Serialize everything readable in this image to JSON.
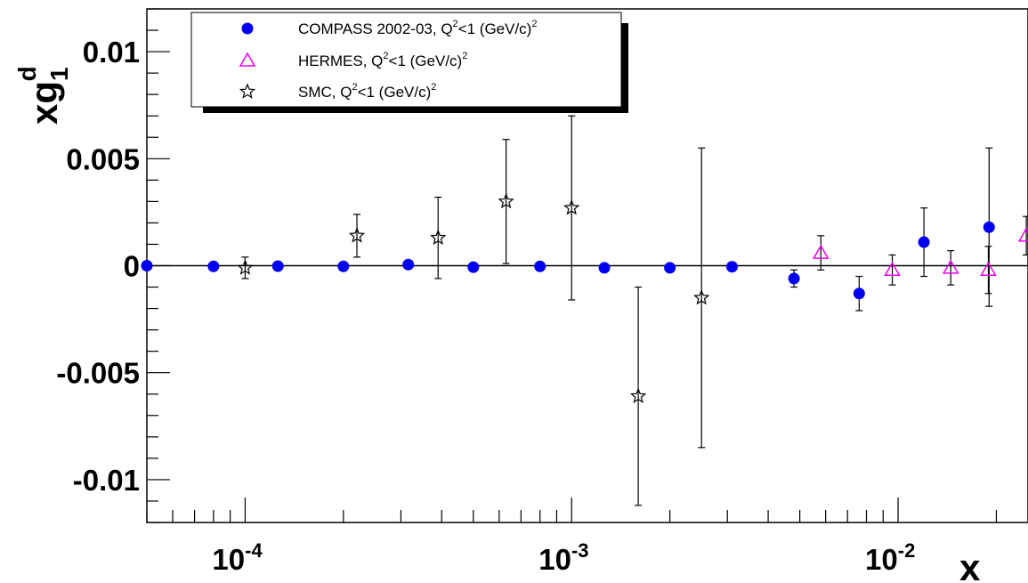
{
  "chart_data": {
    "type": "scatter",
    "x_scale": "log",
    "xlim": [
      5e-05,
      0.025
    ],
    "ylim": [
      -0.012,
      0.012
    ],
    "xlabel": "x",
    "ylabel": {
      "base": "xg",
      "sub": "1",
      "sup": "d"
    },
    "x_ticks": [
      {
        "base": "10",
        "exp": "-4",
        "value": 0.0001
      },
      {
        "base": "10",
        "exp": "-3",
        "value": 0.001
      },
      {
        "base": "10",
        "exp": "-2",
        "value": 0.01
      }
    ],
    "y_ticks": [
      {
        "label": "0.01",
        "value": 0.01
      },
      {
        "label": "0.005",
        "value": 0.005
      },
      {
        "label": "0",
        "value": 0
      },
      {
        "label": "-0.005",
        "value": -0.005
      },
      {
        "label": "-0.01",
        "value": -0.01
      }
    ],
    "series": [
      {
        "marker": "circle",
        "color": "#0000ee",
        "legend": {
          "main": "COMPASS 2002-03, Q",
          "sup1": "2",
          "mid": "<1 (GeV/c)",
          "sup2": "2"
        },
        "points": [
          {
            "x": 5e-05,
            "y": 0.0
          },
          {
            "x": 8e-05,
            "y": -3e-05
          },
          {
            "x": 0.000126,
            "y": -2e-05
          },
          {
            "x": 0.0002,
            "y": -3e-05
          },
          {
            "x": 0.000316,
            "y": 5e-05
          },
          {
            "x": 0.0005,
            "y": -7e-05
          },
          {
            "x": 0.0008,
            "y": -3e-05
          },
          {
            "x": 0.00126,
            "y": -0.0001
          },
          {
            "x": 0.002,
            "y": -0.0001
          },
          {
            "x": 0.0031,
            "y": -5e-05,
            "err": 0.0002
          },
          {
            "x": 0.0048,
            "y": -0.0006,
            "err": 0.0004
          },
          {
            "x": 0.0076,
            "y": -0.0013,
            "err": 0.0008
          },
          {
            "x": 0.012,
            "y": 0.0011,
            "err": 0.0016
          },
          {
            "x": 0.019,
            "y": 0.0018,
            "err": 0.0037
          }
        ]
      },
      {
        "marker": "triangle",
        "color": "#ee00ee",
        "legend": {
          "main": "HERMES, Q",
          "sup1": "2",
          "mid": "<1 (GeV/c)",
          "sup2": "2"
        },
        "points": [
          {
            "x": 0.0058,
            "y": 0.0006,
            "err": 0.0008
          },
          {
            "x": 0.0096,
            "y": -0.0002,
            "err": 0.0007
          },
          {
            "x": 0.0145,
            "y": -0.0001,
            "err": 0.0008
          },
          {
            "x": 0.0189,
            "y": -0.0002,
            "err": 0.0011
          },
          {
            "x": 0.0247,
            "y": 0.0014,
            "err": 0.0009
          }
        ]
      },
      {
        "marker": "star",
        "color": "#000000",
        "legend": {
          "main": "SMC, Q",
          "sup1": "2",
          "mid": "<1 (GeV/c)",
          "sup2": "2"
        },
        "points": [
          {
            "x": 0.0001,
            "y": -0.0001,
            "err": 0.0005
          },
          {
            "x": 0.00022,
            "y": 0.0014,
            "err": 0.001
          },
          {
            "x": 0.00039,
            "y": 0.0013,
            "err": 0.0019
          },
          {
            "x": 0.00063,
            "y": 0.003,
            "err": 0.0029
          },
          {
            "x": 0.001,
            "y": 0.0027,
            "err": 0.0043
          },
          {
            "x": 0.0016,
            "y": -0.0061,
            "err": 0.0051
          },
          {
            "x": 0.0025,
            "y": -0.0015,
            "err": 0.007
          }
        ]
      }
    ]
  }
}
